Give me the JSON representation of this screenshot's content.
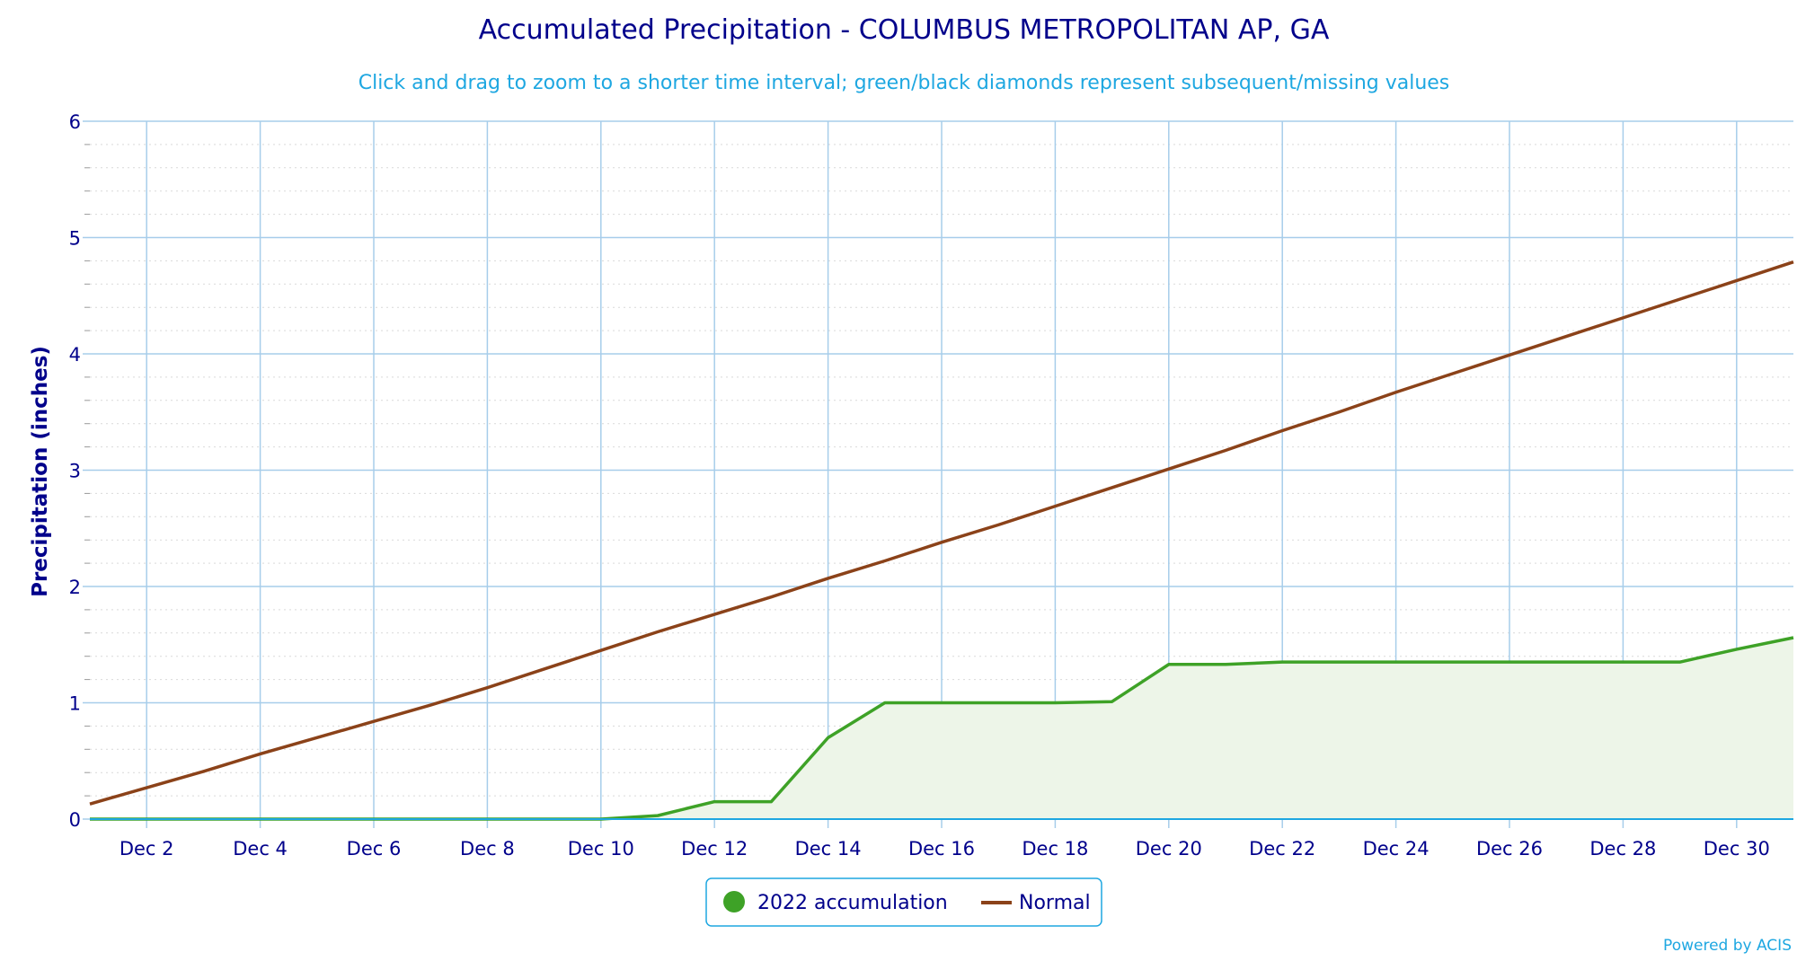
{
  "title": "Accumulated Precipitation - COLUMBUS METROPOLITAN AP, GA",
  "subtitle": "Click and drag to zoom to a shorter time interval; green/black diamonds represent subsequent/missing values",
  "credit": "Powered by ACIS",
  "colors": {
    "title": "#00008b",
    "subtitle": "#1ea7e1",
    "accumulation_line": "#3ea227",
    "accumulation_fill": "#edf5e8",
    "normal_line": "#8b4219",
    "grid_major": "#a7cdea",
    "grid_minor": "#d9d9d9"
  },
  "chart_data": {
    "type": "line",
    "title": "Accumulated Precipitation - COLUMBUS METROPOLITAN AP, GA",
    "subtitle": "Click and drag to zoom to a shorter time interval; green/black diamonds represent subsequent/missing values",
    "xlabel": "",
    "ylabel": "Precipitation (inches)",
    "x_range": [
      1,
      31
    ],
    "ylim": [
      0,
      6
    ],
    "y_ticks": [
      0,
      1,
      2,
      3,
      4,
      5,
      6
    ],
    "x_ticks": [
      {
        "day": 2,
        "label": "Dec 2"
      },
      {
        "day": 4,
        "label": "Dec 4"
      },
      {
        "day": 6,
        "label": "Dec 6"
      },
      {
        "day": 8,
        "label": "Dec 8"
      },
      {
        "day": 10,
        "label": "Dec 10"
      },
      {
        "day": 12,
        "label": "Dec 12"
      },
      {
        "day": 14,
        "label": "Dec 14"
      },
      {
        "day": 16,
        "label": "Dec 16"
      },
      {
        "day": 18,
        "label": "Dec 18"
      },
      {
        "day": 20,
        "label": "Dec 20"
      },
      {
        "day": 22,
        "label": "Dec 22"
      },
      {
        "day": 24,
        "label": "Dec 24"
      },
      {
        "day": 26,
        "label": "Dec 26"
      },
      {
        "day": 28,
        "label": "Dec 28"
      },
      {
        "day": 30,
        "label": "Dec 30"
      }
    ],
    "grid": true,
    "legend_position": "bottom-center",
    "series": [
      {
        "name": "2022 accumulation",
        "color": "#3ea227",
        "fill": true,
        "points": [
          [
            1,
            0
          ],
          [
            2,
            0
          ],
          [
            3,
            0
          ],
          [
            4,
            0
          ],
          [
            5,
            0
          ],
          [
            6,
            0
          ],
          [
            7,
            0
          ],
          [
            8,
            0
          ],
          [
            9,
            0
          ],
          [
            10,
            0
          ],
          [
            11,
            0.03
          ],
          [
            12,
            0.15
          ],
          [
            13,
            0.15
          ],
          [
            14,
            0.7
          ],
          [
            15,
            1.0
          ],
          [
            16,
            1.0
          ],
          [
            17,
            1.0
          ],
          [
            18,
            1.0
          ],
          [
            19,
            1.01
          ],
          [
            20,
            1.33
          ],
          [
            21,
            1.33
          ],
          [
            22,
            1.35
          ],
          [
            23,
            1.35
          ],
          [
            24,
            1.35
          ],
          [
            25,
            1.35
          ],
          [
            26,
            1.35
          ],
          [
            27,
            1.35
          ],
          [
            28,
            1.35
          ],
          [
            29,
            1.35
          ],
          [
            30,
            1.46
          ],
          [
            31,
            1.56
          ]
        ]
      },
      {
        "name": "Normal",
        "color": "#8b4219",
        "fill": false,
        "points": [
          [
            1,
            0.13
          ],
          [
            2,
            0.27
          ],
          [
            3,
            0.41
          ],
          [
            4,
            0.56
          ],
          [
            5,
            0.7
          ],
          [
            6,
            0.84
          ],
          [
            7,
            0.98
          ],
          [
            8,
            1.13
          ],
          [
            9,
            1.29
          ],
          [
            10,
            1.45
          ],
          [
            11,
            1.61
          ],
          [
            12,
            1.76
          ],
          [
            13,
            1.91
          ],
          [
            14,
            2.07
          ],
          [
            15,
            2.22
          ],
          [
            16,
            2.38
          ],
          [
            17,
            2.53
          ],
          [
            18,
            2.69
          ],
          [
            19,
            2.85
          ],
          [
            20,
            3.01
          ],
          [
            21,
            3.17
          ],
          [
            22,
            3.34
          ],
          [
            23,
            3.5
          ],
          [
            24,
            3.67
          ],
          [
            25,
            3.83
          ],
          [
            26,
            3.99
          ],
          [
            27,
            4.15
          ],
          [
            28,
            4.31
          ],
          [
            29,
            4.47
          ],
          [
            30,
            4.63
          ],
          [
            31,
            4.79
          ]
        ]
      }
    ]
  }
}
